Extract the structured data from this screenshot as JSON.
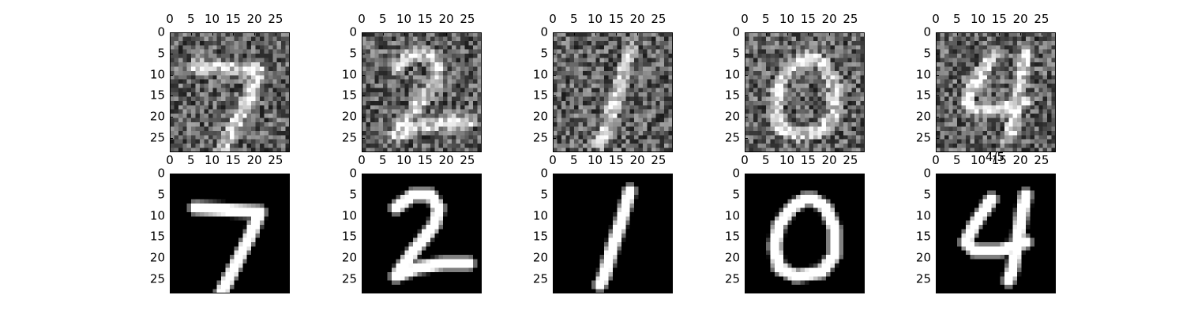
{
  "figure": {
    "annotation": "4/5"
  },
  "chart_data": [
    {
      "type": "heatmap",
      "row": "noisy",
      "digit": "7",
      "x_ticks": [
        "0",
        "5",
        "10",
        "15",
        "20",
        "25"
      ],
      "y_ticks": [
        "0",
        "5",
        "10",
        "15",
        "20",
        "25"
      ],
      "xlim": [
        0,
        28
      ],
      "ylim": [
        28,
        0
      ],
      "colormap": "gray"
    },
    {
      "type": "heatmap",
      "row": "noisy",
      "digit": "2",
      "x_ticks": [
        "0",
        "5",
        "10",
        "15",
        "20",
        "25"
      ],
      "y_ticks": [
        "0",
        "5",
        "10",
        "15",
        "20",
        "25"
      ],
      "xlim": [
        0,
        28
      ],
      "ylim": [
        28,
        0
      ],
      "colormap": "gray"
    },
    {
      "type": "heatmap",
      "row": "noisy",
      "digit": "1",
      "x_ticks": [
        "0",
        "5",
        "10",
        "15",
        "20",
        "25"
      ],
      "y_ticks": [
        "0",
        "5",
        "10",
        "15",
        "20",
        "25"
      ],
      "xlim": [
        0,
        28
      ],
      "ylim": [
        28,
        0
      ],
      "colormap": "gray"
    },
    {
      "type": "heatmap",
      "row": "noisy",
      "digit": "0",
      "x_ticks": [
        "0",
        "5",
        "10",
        "15",
        "20",
        "25"
      ],
      "y_ticks": [
        "0",
        "5",
        "10",
        "15",
        "20",
        "25"
      ],
      "xlim": [
        0,
        28
      ],
      "ylim": [
        28,
        0
      ],
      "colormap": "gray"
    },
    {
      "type": "heatmap",
      "row": "noisy",
      "digit": "4",
      "x_ticks": [
        "0",
        "5",
        "10",
        "15",
        "20",
        "25"
      ],
      "y_ticks": [
        "0",
        "5",
        "10",
        "15",
        "20",
        "25"
      ],
      "xlim": [
        0,
        28
      ],
      "ylim": [
        28,
        0
      ],
      "colormap": "gray"
    },
    {
      "type": "heatmap",
      "row": "clean",
      "digit": "7",
      "x_ticks": [
        "0",
        "5",
        "10",
        "15",
        "20",
        "25"
      ],
      "y_ticks": [
        "0",
        "5",
        "10",
        "15",
        "20",
        "25"
      ],
      "xlim": [
        0,
        28
      ],
      "ylim": [
        28,
        0
      ],
      "colormap": "gray"
    },
    {
      "type": "heatmap",
      "row": "clean",
      "digit": "2",
      "x_ticks": [
        "0",
        "5",
        "10",
        "15",
        "20",
        "25"
      ],
      "y_ticks": [
        "0",
        "5",
        "10",
        "15",
        "20",
        "25"
      ],
      "xlim": [
        0,
        28
      ],
      "ylim": [
        28,
        0
      ],
      "colormap": "gray"
    },
    {
      "type": "heatmap",
      "row": "clean",
      "digit": "1",
      "x_ticks": [
        "0",
        "5",
        "10",
        "15",
        "20",
        "25"
      ],
      "y_ticks": [
        "0",
        "5",
        "10",
        "15",
        "20",
        "25"
      ],
      "xlim": [
        0,
        28
      ],
      "ylim": [
        28,
        0
      ],
      "colormap": "gray"
    },
    {
      "type": "heatmap",
      "row": "clean",
      "digit": "0",
      "x_ticks": [
        "0",
        "5",
        "10",
        "15",
        "20",
        "25"
      ],
      "y_ticks": [
        "0",
        "5",
        "10",
        "15",
        "20",
        "25"
      ],
      "xlim": [
        0,
        28
      ],
      "ylim": [
        28,
        0
      ],
      "colormap": "gray"
    },
    {
      "type": "heatmap",
      "row": "clean",
      "digit": "4",
      "x_ticks": [
        "0",
        "5",
        "10",
        "15",
        "20",
        "25"
      ],
      "y_ticks": [
        "0",
        "5",
        "10",
        "15",
        "20",
        "25"
      ],
      "xlim": [
        0,
        28
      ],
      "ylim": [
        28,
        0
      ],
      "colormap": "gray"
    }
  ]
}
